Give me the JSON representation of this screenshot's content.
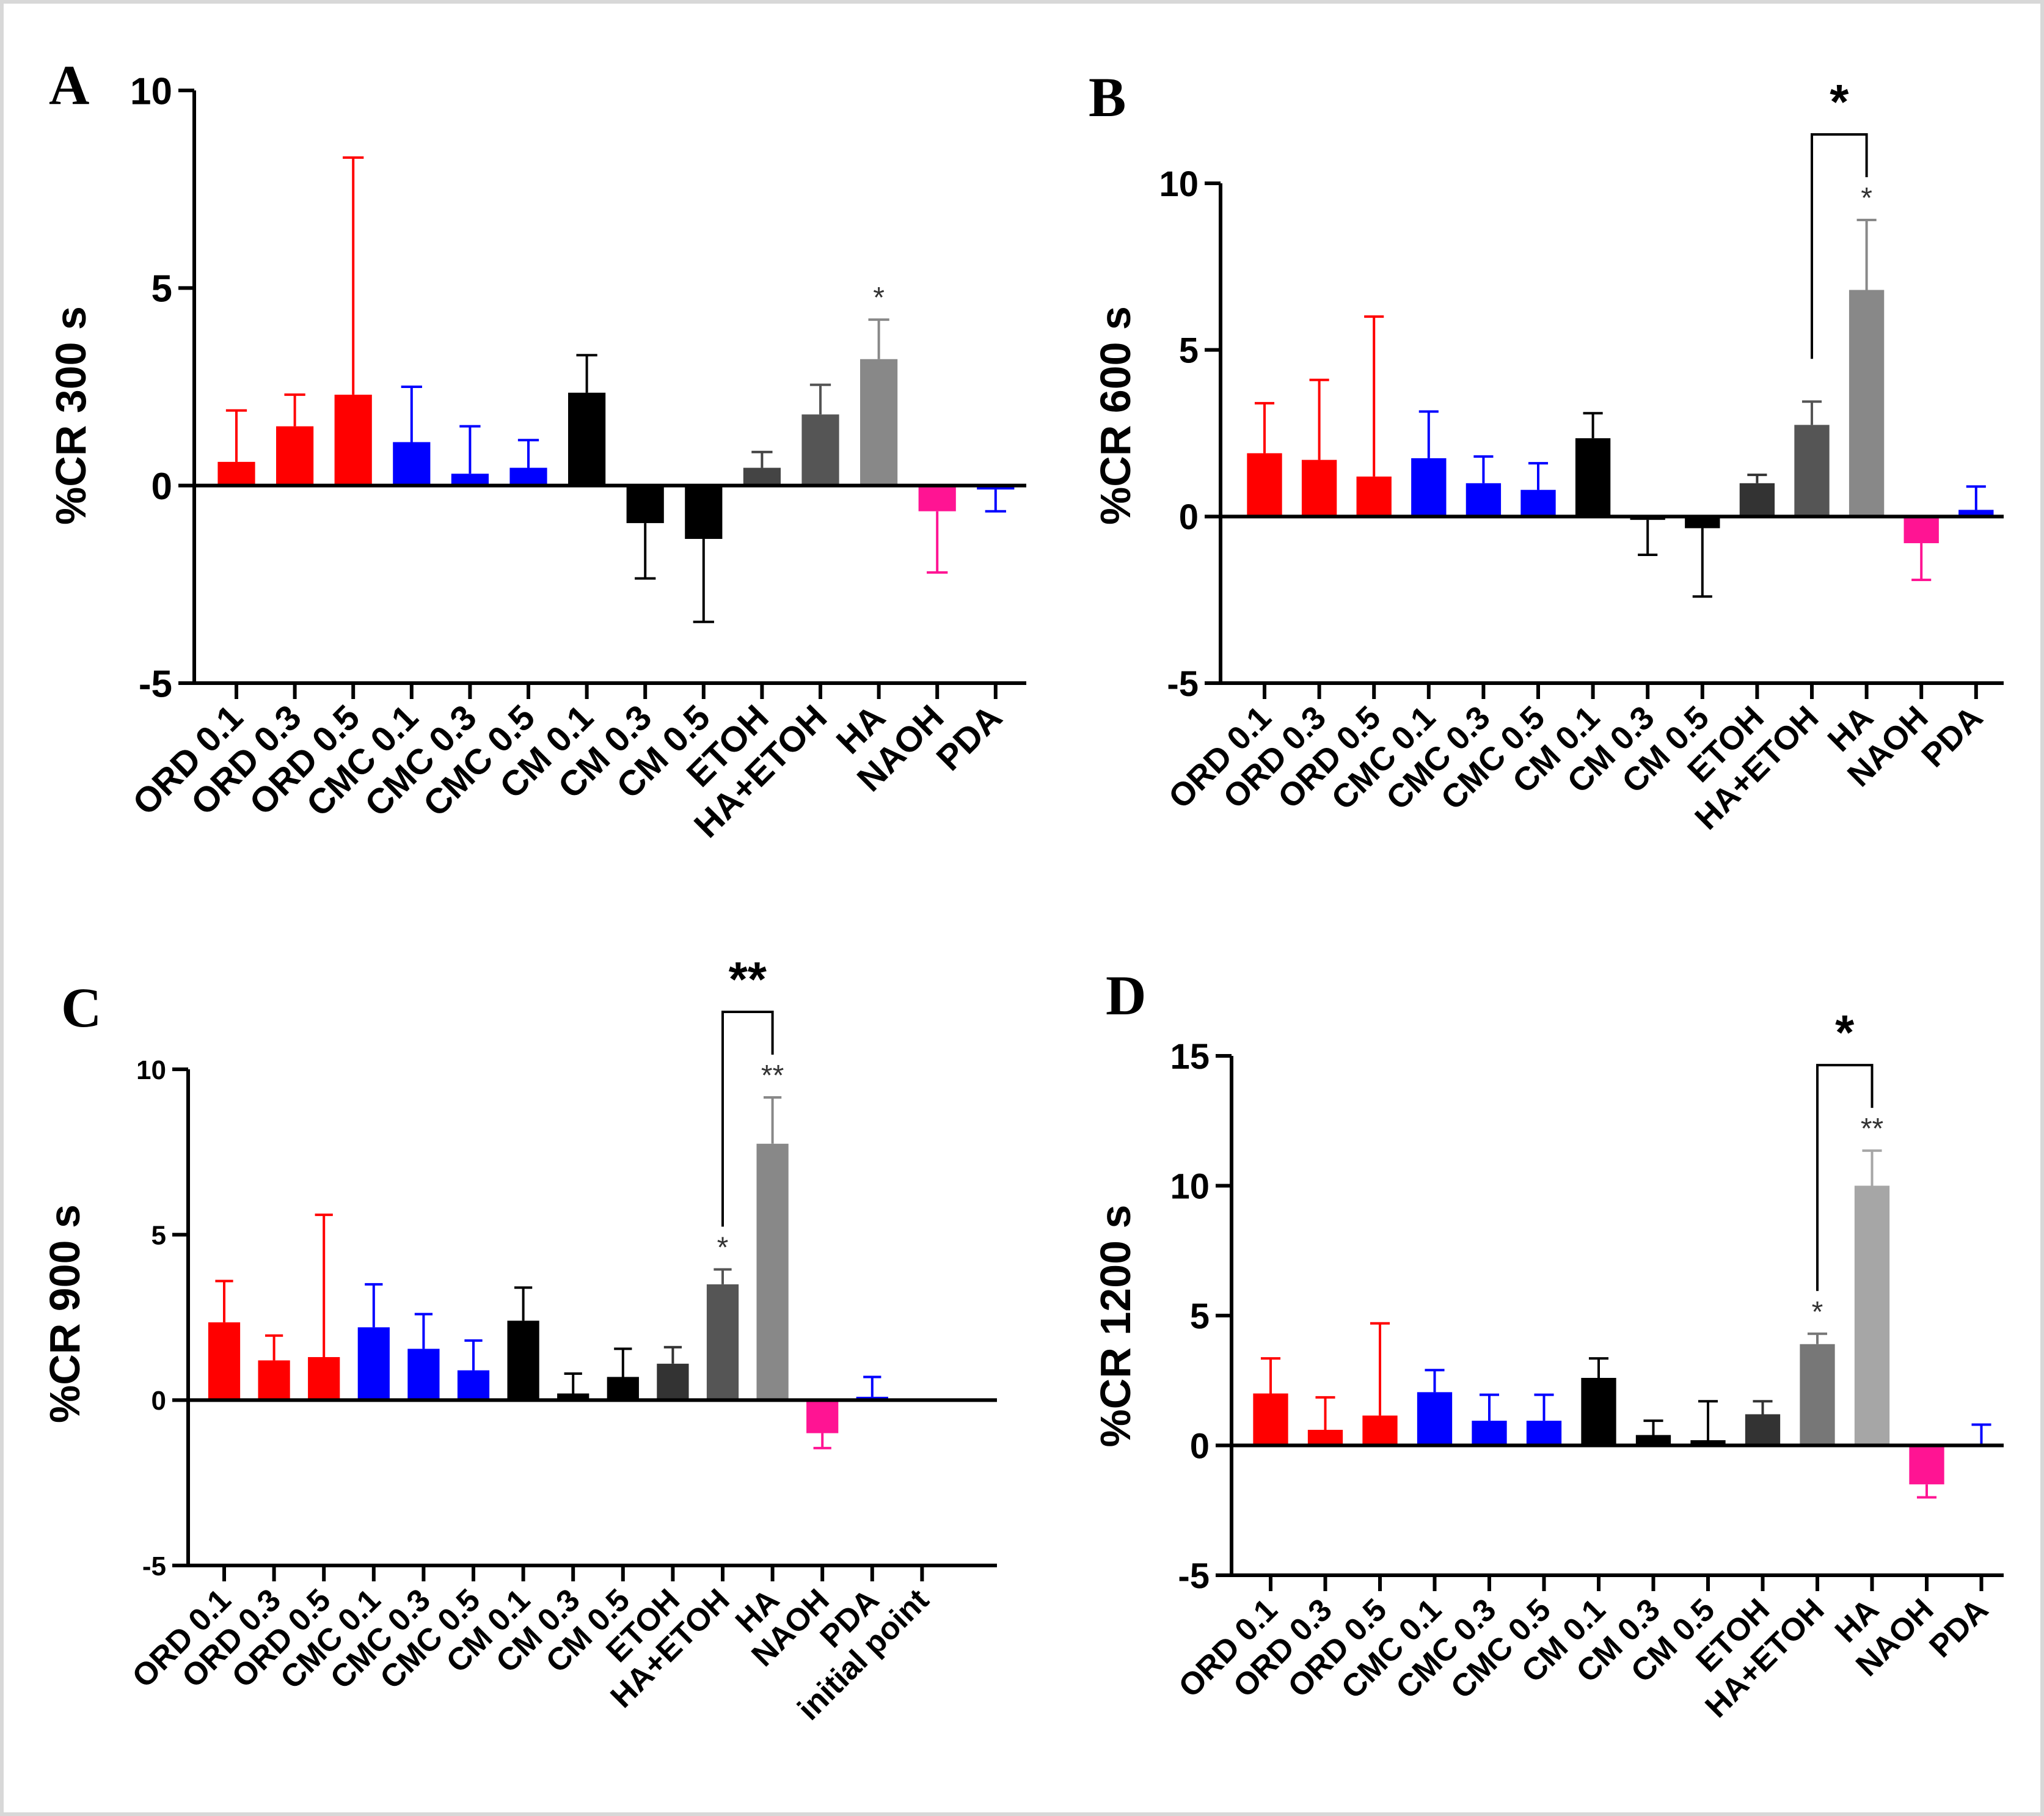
{
  "chart_data": [
    {
      "type": "bar",
      "panel": "A",
      "ylabel": "%CR 300 s",
      "ylim": [
        -5,
        10
      ],
      "yticks": [
        "-5",
        "0",
        "5",
        "10"
      ],
      "categories": [
        "ORD 0.1",
        "ORD 0.3",
        "ORD 0.5",
        "CMC 0.1",
        "CMC 0.3",
        "CMC 0.5",
        "CM 0.1",
        "CM 0.3",
        "CM 0.5",
        "ETOH",
        "HA+ETOH",
        "HA",
        "NAOH",
        "PDA"
      ],
      "values": [
        0.6,
        1.5,
        2.3,
        1.1,
        0.3,
        0.45,
        2.35,
        -0.95,
        -1.35,
        0.45,
        1.8,
        3.2,
        -0.65,
        -0.1
      ],
      "errors": [
        1.3,
        0.8,
        6.0,
        1.4,
        1.2,
        0.7,
        0.95,
        1.4,
        2.1,
        0.4,
        0.75,
        1.0,
        1.55,
        0.55
      ],
      "colors": [
        "#ff0000",
        "#ff0000",
        "#ff0000",
        "#0000ff",
        "#0000ff",
        "#0000ff",
        "#000000",
        "#000000",
        "#000000",
        "#444444",
        "#555555",
        "#888888",
        "#ff1493",
        "#0000ff"
      ],
      "significance": [
        {
          "index": 11,
          "label": "*"
        }
      ],
      "brackets": []
    },
    {
      "type": "bar",
      "panel": "B",
      "ylabel": "%CR 600 s",
      "ylim": [
        -5,
        10
      ],
      "yticks": [
        "-5",
        "0",
        "5",
        "10"
      ],
      "categories": [
        "ORD 0.1",
        "ORD 0.3",
        "ORD 0.5",
        "CMC 0.1",
        "CMC 0.3",
        "CMC 0.5",
        "CM 0.1",
        "CM 0.3",
        "CM 0.5",
        "ETOH",
        "HA+ETOH",
        "HA",
        "NAOH",
        "PDA"
      ],
      "values": [
        1.9,
        1.7,
        1.2,
        1.75,
        1.0,
        0.8,
        2.35,
        -0.1,
        -0.35,
        1.0,
        2.75,
        6.8,
        -0.8,
        0.2
      ],
      "errors": [
        1.5,
        2.4,
        4.8,
        1.4,
        0.8,
        0.8,
        0.75,
        1.05,
        2.05,
        0.25,
        0.7,
        2.1,
        1.1,
        0.7
      ],
      "colors": [
        "#ff0000",
        "#ff0000",
        "#ff0000",
        "#0000ff",
        "#0000ff",
        "#0000ff",
        "#000000",
        "#000000",
        "#000000",
        "#333333",
        "#555555",
        "#888888",
        "#ff1493",
        "#0000ff"
      ],
      "significance": [
        {
          "index": 11,
          "label": "*"
        }
      ],
      "brackets": [
        {
          "from": 10,
          "to": 11,
          "label": "*"
        }
      ]
    },
    {
      "type": "bar",
      "panel": "C",
      "ylabel": "%CR 900 s",
      "ylim": [
        -5,
        10
      ],
      "yticks": [
        "-5",
        "0",
        "5",
        "10"
      ],
      "categories": [
        "ORD 0.1",
        "ORD 0.3",
        "ORD 0.5",
        "CMC 0.1",
        "CMC 0.3",
        "CMC 0.5",
        "CM 0.1",
        "CM 0.3",
        "CM 0.5",
        "ETOH",
        "HA+ETOH",
        "HA",
        "NAOH",
        "PDA",
        "initial point"
      ],
      "values": [
        2.35,
        1.2,
        1.3,
        2.2,
        1.55,
        0.9,
        2.4,
        0.2,
        0.7,
        1.1,
        3.5,
        7.75,
        -1.0,
        0.1,
        0
      ],
      "errors": [
        1.25,
        0.75,
        4.3,
        1.3,
        1.05,
        0.9,
        1.0,
        0.6,
        0.85,
        0.5,
        0.45,
        1.4,
        0.45,
        0.6,
        0
      ],
      "colors": [
        "#ff0000",
        "#ff0000",
        "#ff0000",
        "#0000ff",
        "#0000ff",
        "#0000ff",
        "#000000",
        "#000000",
        "#000000",
        "#333333",
        "#555555",
        "#888888",
        "#ff1493",
        "#0000ff",
        "#000000"
      ],
      "significance": [
        {
          "index": 10,
          "label": "*"
        },
        {
          "index": 11,
          "label": "**"
        }
      ],
      "brackets": [
        {
          "from": 10,
          "to": 11,
          "label": "**"
        }
      ]
    },
    {
      "type": "bar",
      "panel": "D",
      "ylabel": "%CR 1200 s",
      "ylim": [
        -5,
        15
      ],
      "yticks": [
        "-5",
        "0",
        "5",
        "10",
        "15"
      ],
      "categories": [
        "ORD 0.1",
        "ORD 0.3",
        "ORD 0.5",
        "CMC 0.1",
        "CMC 0.3",
        "CMC 0.5",
        "CM 0.1",
        "CM 0.3",
        "CM 0.5",
        "ETOH",
        "HA+ETOH",
        "HA",
        "NAOH",
        "PDA"
      ],
      "values": [
        2.0,
        0.6,
        1.15,
        2.05,
        0.95,
        0.95,
        2.6,
        0.4,
        0.2,
        1.2,
        3.9,
        10.0,
        -1.5,
        0.05
      ],
      "errors": [
        1.35,
        1.25,
        3.55,
        0.85,
        1.0,
        1.0,
        0.75,
        0.55,
        1.5,
        0.5,
        0.4,
        1.35,
        0.5,
        0.75
      ],
      "colors": [
        "#ff0000",
        "#ff0000",
        "#ff0000",
        "#0000ff",
        "#0000ff",
        "#0000ff",
        "#000000",
        "#000000",
        "#000000",
        "#333333",
        "#777777",
        "#a6a6a6",
        "#ff1493",
        "#0000ff"
      ],
      "significance": [
        {
          "index": 10,
          "label": "*"
        },
        {
          "index": 11,
          "label": "**"
        }
      ],
      "brackets": [
        {
          "from": 10,
          "to": 11,
          "label": "*"
        }
      ]
    }
  ]
}
